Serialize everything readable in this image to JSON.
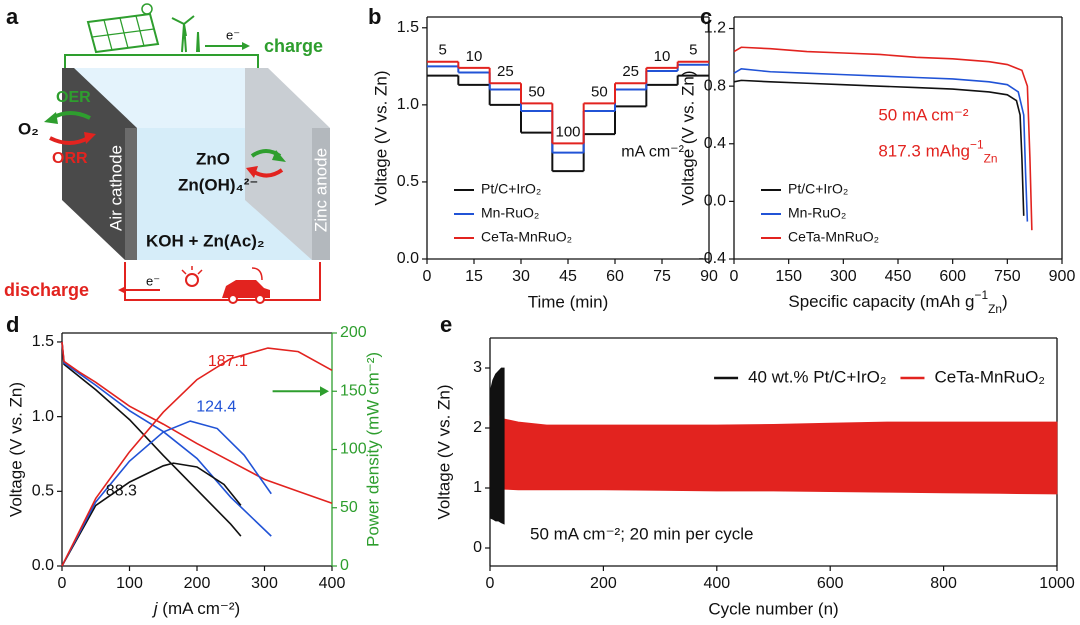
{
  "diagram": {
    "label": "a",
    "charge": "charge",
    "discharge": "discharge",
    "electron_top": "e⁻",
    "electron_bottom": "e⁻",
    "oer": "OER",
    "orr": "ORR",
    "oxygen": "O₂",
    "cathode": "Air cathode",
    "anode": "Zinc anode",
    "species": [
      "ZnO",
      "Zn(OH)₄²⁻"
    ],
    "electrolyte": "KOH + Zn(Ac)₂"
  },
  "chart_data": [
    {
      "type": "step",
      "label": "b",
      "x_label": "Time (min)",
      "y_label": "Voltage (V vs. Zn)",
      "x": [
        0,
        10,
        20,
        30,
        40,
        50,
        60,
        70,
        80
      ],
      "xlim": [
        0,
        90
      ],
      "xticks": [
        0,
        15,
        30,
        45,
        60,
        75,
        90
      ],
      "ylim": [
        0,
        1.57
      ],
      "yticks": [
        {
          "value": 0,
          "label": "0.0"
        },
        0.5,
        {
          "value": 1,
          "label": "1.0"
        },
        1.5
      ],
      "step_labels": [
        5,
        10,
        25,
        50,
        100,
        50,
        25,
        10,
        5
      ],
      "unit_label": "mA cm⁻²",
      "legend": "lower left",
      "series": [
        {
          "name": "Pt/C+IrO₂",
          "color": "#111111",
          "values": [
            1.19,
            1.13,
            1.0,
            0.82,
            0.57,
            0.81,
            0.99,
            1.13,
            1.19
          ]
        },
        {
          "name": "Mn-RuO₂",
          "color": "#2153d6",
          "values": [
            1.25,
            1.21,
            1.1,
            0.96,
            0.69,
            0.96,
            1.1,
            1.22,
            1.26
          ]
        },
        {
          "name": "CeTa-MnRuO₂",
          "color": "#e2231f",
          "values": [
            1.28,
            1.24,
            1.14,
            1.01,
            0.75,
            1.01,
            1.14,
            1.24,
            1.28
          ]
        }
      ]
    },
    {
      "type": "line",
      "label": "c",
      "x_label": {
        "text": "Specific capacity (mAh g",
        "sup": "−1",
        "sub": "Zn",
        "tail": ")"
      },
      "y_label": "Voltage (V vs. Zn)",
      "xlim": [
        0,
        900
      ],
      "xticks": [
        0,
        150,
        300,
        450,
        600,
        750,
        900
      ],
      "ylim": [
        -0.4,
        1.28
      ],
      "yticks": [
        -0.4,
        {
          "value": 0,
          "label": "0.0"
        },
        0.4,
        0.8,
        1.2
      ],
      "annotations": [
        "50 mA cm⁻²",
        {
          "text": "817.3 mAhg",
          "sup": "−1",
          "sub": "Zn"
        }
      ],
      "annotation_color": "#e2231f",
      "legend": "lower left",
      "series": [
        {
          "name": "Pt/C+IrO₂",
          "color": "#111111",
          "x": [
            0,
            20,
            100,
            200,
            300,
            400,
            500,
            600,
            700,
            750,
            775,
            785,
            790,
            795
          ],
          "values": [
            0.83,
            0.84,
            0.83,
            0.82,
            0.81,
            0.8,
            0.79,
            0.78,
            0.76,
            0.74,
            0.7,
            0.6,
            0.3,
            -0.1
          ]
        },
        {
          "name": "Mn-RuO₂",
          "color": "#2153d6",
          "x": [
            0,
            20,
            100,
            200,
            300,
            400,
            500,
            600,
            700,
            750,
            780,
            795,
            800,
            805
          ],
          "values": [
            0.89,
            0.92,
            0.9,
            0.89,
            0.88,
            0.87,
            0.86,
            0.85,
            0.83,
            0.81,
            0.76,
            0.6,
            0.2,
            -0.14
          ]
        },
        {
          "name": "CeTa-MnRuO₂",
          "color": "#e2231f",
          "x": [
            0,
            20,
            100,
            200,
            300,
            400,
            500,
            600,
            700,
            750,
            790,
            805,
            812,
            817.3
          ],
          "values": [
            1.04,
            1.07,
            1.06,
            1.04,
            1.03,
            1.02,
            1.0,
            0.99,
            0.97,
            0.95,
            0.91,
            0.8,
            0.3,
            -0.2
          ]
        }
      ]
    },
    {
      "type": "line",
      "label": "d",
      "x_label": {
        "italic": "j",
        "text": " (mA cm⁻²)"
      },
      "y_label": "Voltage (V vs. Zn)",
      "y2_label": "Power density (mW cm⁻²)",
      "y2_color": "#2e9e2e",
      "xlim": [
        0,
        400
      ],
      "xticks": [
        0,
        100,
        200,
        300,
        400
      ],
      "ylim": [
        0,
        1.56
      ],
      "yticks": [
        {
          "value": 0,
          "label": "0.0"
        },
        0.5,
        {
          "value": 1,
          "label": "1.0"
        },
        1.5
      ],
      "y2lim": [
        0,
        200
      ],
      "y2ticks": [
        0,
        50,
        100,
        150,
        200
      ],
      "peak_labels": [
        88.3,
        124.4,
        187.1
      ],
      "series": [
        {
          "color": "#111111",
          "x": [
            0,
            3,
            25,
            50,
            100,
            150,
            200,
            250,
            265
          ],
          "values": [
            1.5,
            1.35,
            1.27,
            1.18,
            0.98,
            0.74,
            0.51,
            0.28,
            0.2
          ]
        },
        {
          "color": "#2153d6",
          "x": [
            0,
            3,
            25,
            50,
            100,
            150,
            200,
            250,
            310
          ],
          "values": [
            1.5,
            1.36,
            1.29,
            1.21,
            1.04,
            0.9,
            0.72,
            0.46,
            0.2
          ]
        },
        {
          "color": "#e2231f",
          "x": [
            0,
            3,
            25,
            50,
            100,
            150,
            200,
            250,
            300,
            350,
            400
          ],
          "values": [
            1.5,
            1.37,
            1.3,
            1.23,
            1.07,
            0.95,
            0.82,
            0.7,
            0.58,
            0.5,
            0.42
          ]
        },
        {
          "color": "#111111",
          "axis": "y2",
          "x": [
            0,
            50,
            100,
            150,
            165,
            200,
            240,
            265
          ],
          "values": [
            0,
            52,
            72,
            86,
            88.3,
            85,
            70,
            52
          ]
        },
        {
          "color": "#2153d6",
          "axis": "y2",
          "x": [
            0,
            50,
            100,
            150,
            190,
            230,
            270,
            310
          ],
          "values": [
            0,
            55,
            90,
            115,
            124.4,
            118,
            95,
            62
          ]
        },
        {
          "color": "#e2231f",
          "axis": "y2",
          "x": [
            0,
            50,
            100,
            150,
            200,
            250,
            305,
            350,
            400
          ],
          "values": [
            0,
            58,
            98,
            132,
            160,
            178,
            187.1,
            184,
            168
          ]
        }
      ]
    },
    {
      "type": "range",
      "label": "e",
      "x_label": "Cycle number (n)",
      "y_label": "Voltage (V vs. Zn)",
      "xlim": [
        0,
        1000
      ],
      "xticks": [
        0,
        200,
        400,
        600,
        800,
        1000
      ],
      "ylim": [
        -0.3,
        3.5
      ],
      "yticks": [
        0,
        1,
        2,
        3
      ],
      "annotations": [
        "50 mA cm⁻²; 20 min per cycle"
      ],
      "legend": "upper right",
      "series": [
        {
          "name": "40 wt.% Pt/C+IrO₂",
          "color": "#111111",
          "x": [
            0,
            5,
            10,
            15,
            20,
            25
          ],
          "high": [
            2.6,
            2.8,
            2.9,
            2.95,
            3.0,
            3.0
          ],
          "low": [
            0.5,
            0.48,
            0.45,
            0.45,
            0.42,
            0.4
          ]
        },
        {
          "name": "CeTa-MnRuO₂",
          "color": "#e2231f",
          "x": [
            0,
            25,
            50,
            100,
            200,
            300,
            400,
            500,
            600,
            700,
            800,
            900,
            1000
          ],
          "high": [
            2.2,
            2.15,
            2.1,
            2.05,
            2.05,
            2.05,
            2.05,
            2.06,
            2.08,
            2.1,
            2.1,
            2.1,
            2.1
          ],
          "low": [
            1.0,
            0.98,
            0.97,
            0.97,
            0.97,
            0.96,
            0.95,
            0.95,
            0.94,
            0.93,
            0.92,
            0.91,
            0.9
          ]
        }
      ]
    }
  ]
}
